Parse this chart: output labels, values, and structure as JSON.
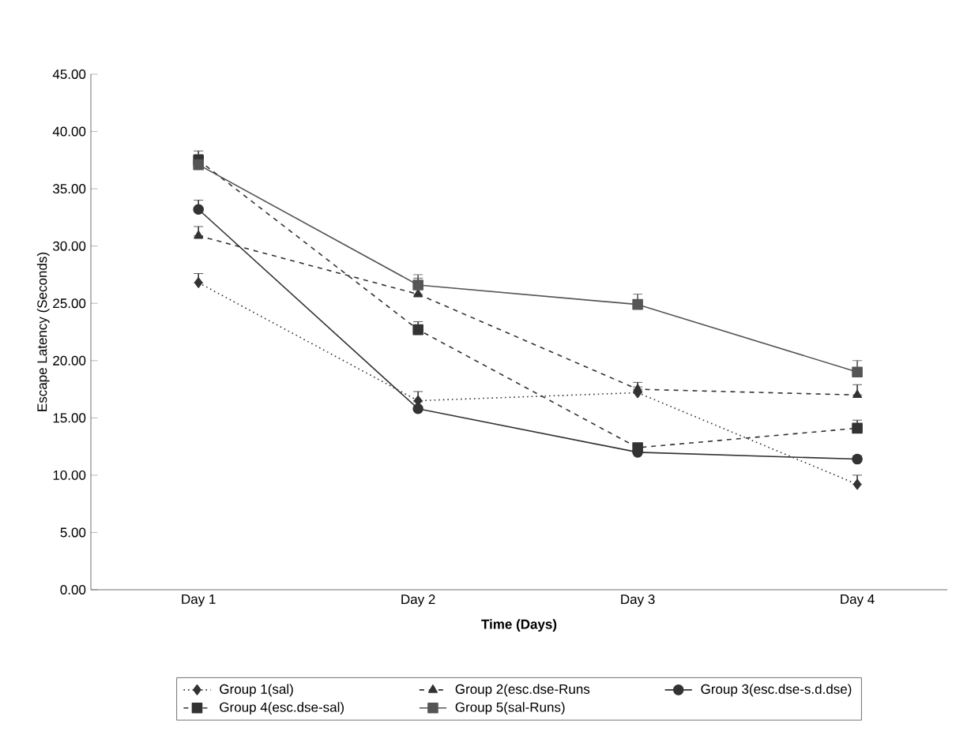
{
  "chart_data": {
    "type": "line",
    "xlabel": "Time (Days)",
    "ylabel": "Escape Latency (Seconds)",
    "categories": [
      "Day 1",
      "Day 2",
      "Day 3",
      "Day 4"
    ],
    "ylim": [
      0,
      45
    ],
    "yticks": [
      {
        "value": 0,
        "label": "0.00"
      },
      {
        "value": 5,
        "label": "5.00"
      },
      {
        "value": 10,
        "label": "10.00"
      },
      {
        "value": 15,
        "label": "15.00"
      },
      {
        "value": 20,
        "label": "20.00"
      },
      {
        "value": 25,
        "label": "25.00"
      },
      {
        "value": 30,
        "label": "30.00"
      },
      {
        "value": 35,
        "label": "35.00"
      },
      {
        "value": 40,
        "label": "40.00"
      },
      {
        "value": 45,
        "label": "45.00"
      }
    ],
    "grid": false,
    "legend": "bottom",
    "series": [
      {
        "name": "Group 1(sal)",
        "color": "#333333",
        "marker": "diamond",
        "line_style": "dotted",
        "values": [
          26.8,
          16.5,
          17.2,
          9.2
        ],
        "errors": [
          [
            26.8,
            27.6
          ],
          [
            16.5,
            17.3
          ],
          [
            17.2,
            17.7
          ],
          [
            9.2,
            10.0
          ]
        ]
      },
      {
        "name": "Group 2(esc.dse-Runs",
        "color": "#333333",
        "marker": "triangle",
        "line_style": "dashed",
        "values": [
          30.9,
          25.8,
          17.5,
          17.0
        ],
        "errors": [
          [
            30.9,
            31.7
          ],
          [
            25.8,
            27.2
          ],
          [
            17.5,
            18.1
          ],
          [
            17.0,
            17.9
          ]
        ]
      },
      {
        "name": "Group 3(esc.dse-s.d.dse)",
        "color": "#333333",
        "marker": "circle",
        "line_style": "solid",
        "values": [
          33.2,
          15.8,
          12.0,
          11.4
        ],
        "errors": [
          [
            33.2,
            34.0
          ],
          [
            15.8,
            16.4
          ],
          [
            12.0,
            12.7
          ],
          [
            11.4,
            11.7
          ]
        ]
      },
      {
        "name": "Group 4(esc.dse-sal)",
        "color": "#333333",
        "marker": "square",
        "line_style": "dashed",
        "values": [
          37.5,
          22.7,
          12.4,
          14.1
        ],
        "errors": [
          [
            37.5,
            38.3
          ],
          [
            22.7,
            23.4
          ],
          [
            12.4,
            12.8
          ],
          [
            14.1,
            14.8
          ]
        ]
      },
      {
        "name": "Group 5(sal-Runs)",
        "color": "#555555",
        "marker": "square",
        "line_style": "solid",
        "values": [
          37.1,
          26.6,
          24.9,
          19.0
        ],
        "errors": [
          [
            37.1,
            38.0
          ],
          [
            26.6,
            27.5
          ],
          [
            24.9,
            25.8
          ],
          [
            19.0,
            20.0
          ]
        ]
      }
    ]
  }
}
